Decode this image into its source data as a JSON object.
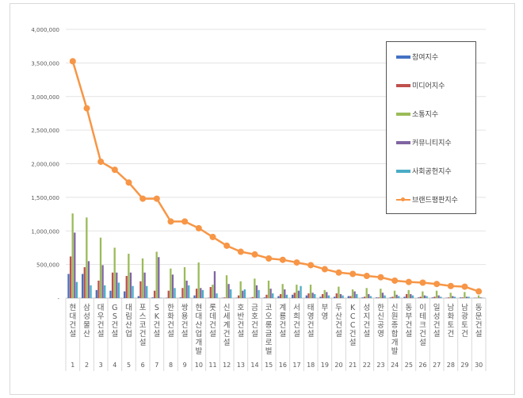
{
  "chart_data": {
    "type": "bar+line",
    "categories": [
      "현대건설",
      "삼성물산",
      "대우건설",
      "GS건설",
      "대림산업",
      "포스코건설",
      "SK건설",
      "한화건설",
      "쌍용건설",
      "현대산업개발",
      "롯데건설",
      "신세계건설",
      "호반건설",
      "금호건설",
      "코오롱글로벌",
      "계룡건설",
      "서희건설",
      "태영건설",
      "부영",
      "두산건설",
      "KCC건설",
      "성지건설",
      "한신공영",
      "신원종합개발",
      "동부건설",
      "이테크건설",
      "일성건설",
      "남화토건",
      "남광토건",
      "동문건설"
    ],
    "ranks": [
      "1",
      "2",
      "3",
      "4",
      "5",
      "6",
      "7",
      "8",
      "9",
      "10",
      "11",
      "12",
      "13",
      "14",
      "15",
      "16",
      "17",
      "18",
      "19",
      "20",
      "21",
      "22",
      "23",
      "24",
      "25",
      "26",
      "27",
      "28",
      "29",
      "30"
    ],
    "ylim": [
      0,
      4000000
    ],
    "yticks": [
      "-",
      "500,000",
      "1,000,000",
      "1,500,000",
      "2,000,000",
      "2,500,000",
      "3,000,000",
      "3,500,000",
      "4,000,000"
    ],
    "grid": true,
    "legend_position": "right",
    "series": [
      {
        "name": "참여지수",
        "type": "bar",
        "color": "#4472c4",
        "values": [
          360000,
          360000,
          120000,
          110000,
          100000,
          30000,
          10000,
          5000,
          10000,
          40000,
          5000,
          5000,
          5000,
          5000,
          10000,
          30000,
          50000,
          40000,
          20000,
          20000,
          30000,
          10000,
          10000,
          10000,
          20000,
          10000,
          10000,
          5000,
          10000,
          5000
        ]
      },
      {
        "name": "미디어지수",
        "type": "bar",
        "color": "#c0504d",
        "values": [
          620000,
          460000,
          260000,
          380000,
          330000,
          250000,
          110000,
          110000,
          150000,
          140000,
          165000,
          10000,
          40000,
          15000,
          50000,
          60000,
          80000,
          70000,
          60000,
          70000,
          30000,
          20000,
          10000,
          20000,
          60000,
          20000,
          20000,
          10000,
          10000,
          5000
        ]
      },
      {
        "name": "소통지수",
        "type": "bar",
        "color": "#9bbb59",
        "values": [
          1260000,
          1200000,
          900000,
          750000,
          660000,
          590000,
          690000,
          440000,
          460000,
          530000,
          200000,
          340000,
          250000,
          290000,
          260000,
          210000,
          200000,
          200000,
          120000,
          170000,
          130000,
          150000,
          140000,
          110000,
          120000,
          100000,
          110000,
          80000,
          90000,
          40000
        ]
      },
      {
        "name": "커뮤니티지수",
        "type": "bar",
        "color": "#8064a2",
        "values": [
          975000,
          550000,
          490000,
          380000,
          380000,
          380000,
          610000,
          350000,
          260000,
          150000,
          400000,
          210000,
          110000,
          190000,
          140000,
          130000,
          110000,
          80000,
          90000,
          60000,
          100000,
          60000,
          80000,
          50000,
          60000,
          40000,
          40000,
          30000,
          20000,
          10000
        ]
      },
      {
        "name": "사회공헌지수",
        "type": "bar",
        "color": "#4bacc6",
        "values": [
          240000,
          190000,
          190000,
          230000,
          180000,
          180000,
          5000,
          150000,
          190000,
          120000,
          70000,
          130000,
          130000,
          120000,
          70000,
          50000,
          180000,
          60000,
          40000,
          40000,
          60000,
          30000,
          40000,
          30000,
          40000,
          30000,
          20000,
          20000,
          20000,
          5000
        ]
      },
      {
        "name": "브랜드평판지수",
        "type": "line",
        "color": "#f79646",
        "values": [
          3525000,
          2825000,
          2030000,
          1910000,
          1720000,
          1480000,
          1480000,
          1140000,
          1140000,
          1040000,
          910000,
          780000,
          690000,
          650000,
          590000,
          570000,
          530000,
          490000,
          430000,
          380000,
          360000,
          330000,
          310000,
          260000,
          240000,
          230000,
          210000,
          180000,
          170000,
          100000
        ]
      }
    ]
  }
}
